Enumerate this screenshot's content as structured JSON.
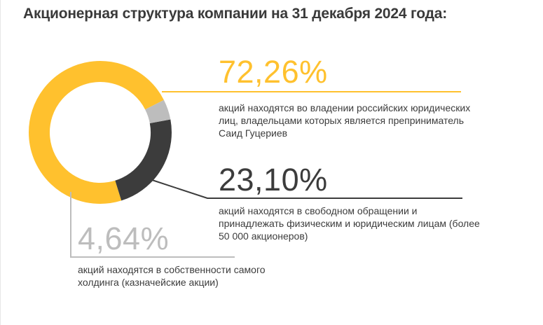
{
  "title": "Акционерная структура компании на 31 декабря 2024 года:",
  "chart_data": {
    "type": "pie",
    "donut": true,
    "title": "Акционерная структура компании на 31 декабря 2024 года:",
    "series": [
      {
        "value": 72.26,
        "label": "72,26%",
        "description": "акций находятся во владении российских юридических лиц, владельцами которых является преприниматель Саид Гуцериев",
        "color": "#ffc12e"
      },
      {
        "value": 23.1,
        "label": "23,10%",
        "description": "акций находятся в свободном обращении и принадлежать физическим и юридическим лицам (более 50 000 акционеров)",
        "color": "#3c3c3c"
      },
      {
        "value": 4.64,
        "label": "4,64%",
        "description": "акций находятся в собственности самого холдинга (казначейские акции)",
        "color": "#bdbdbd"
      }
    ]
  }
}
